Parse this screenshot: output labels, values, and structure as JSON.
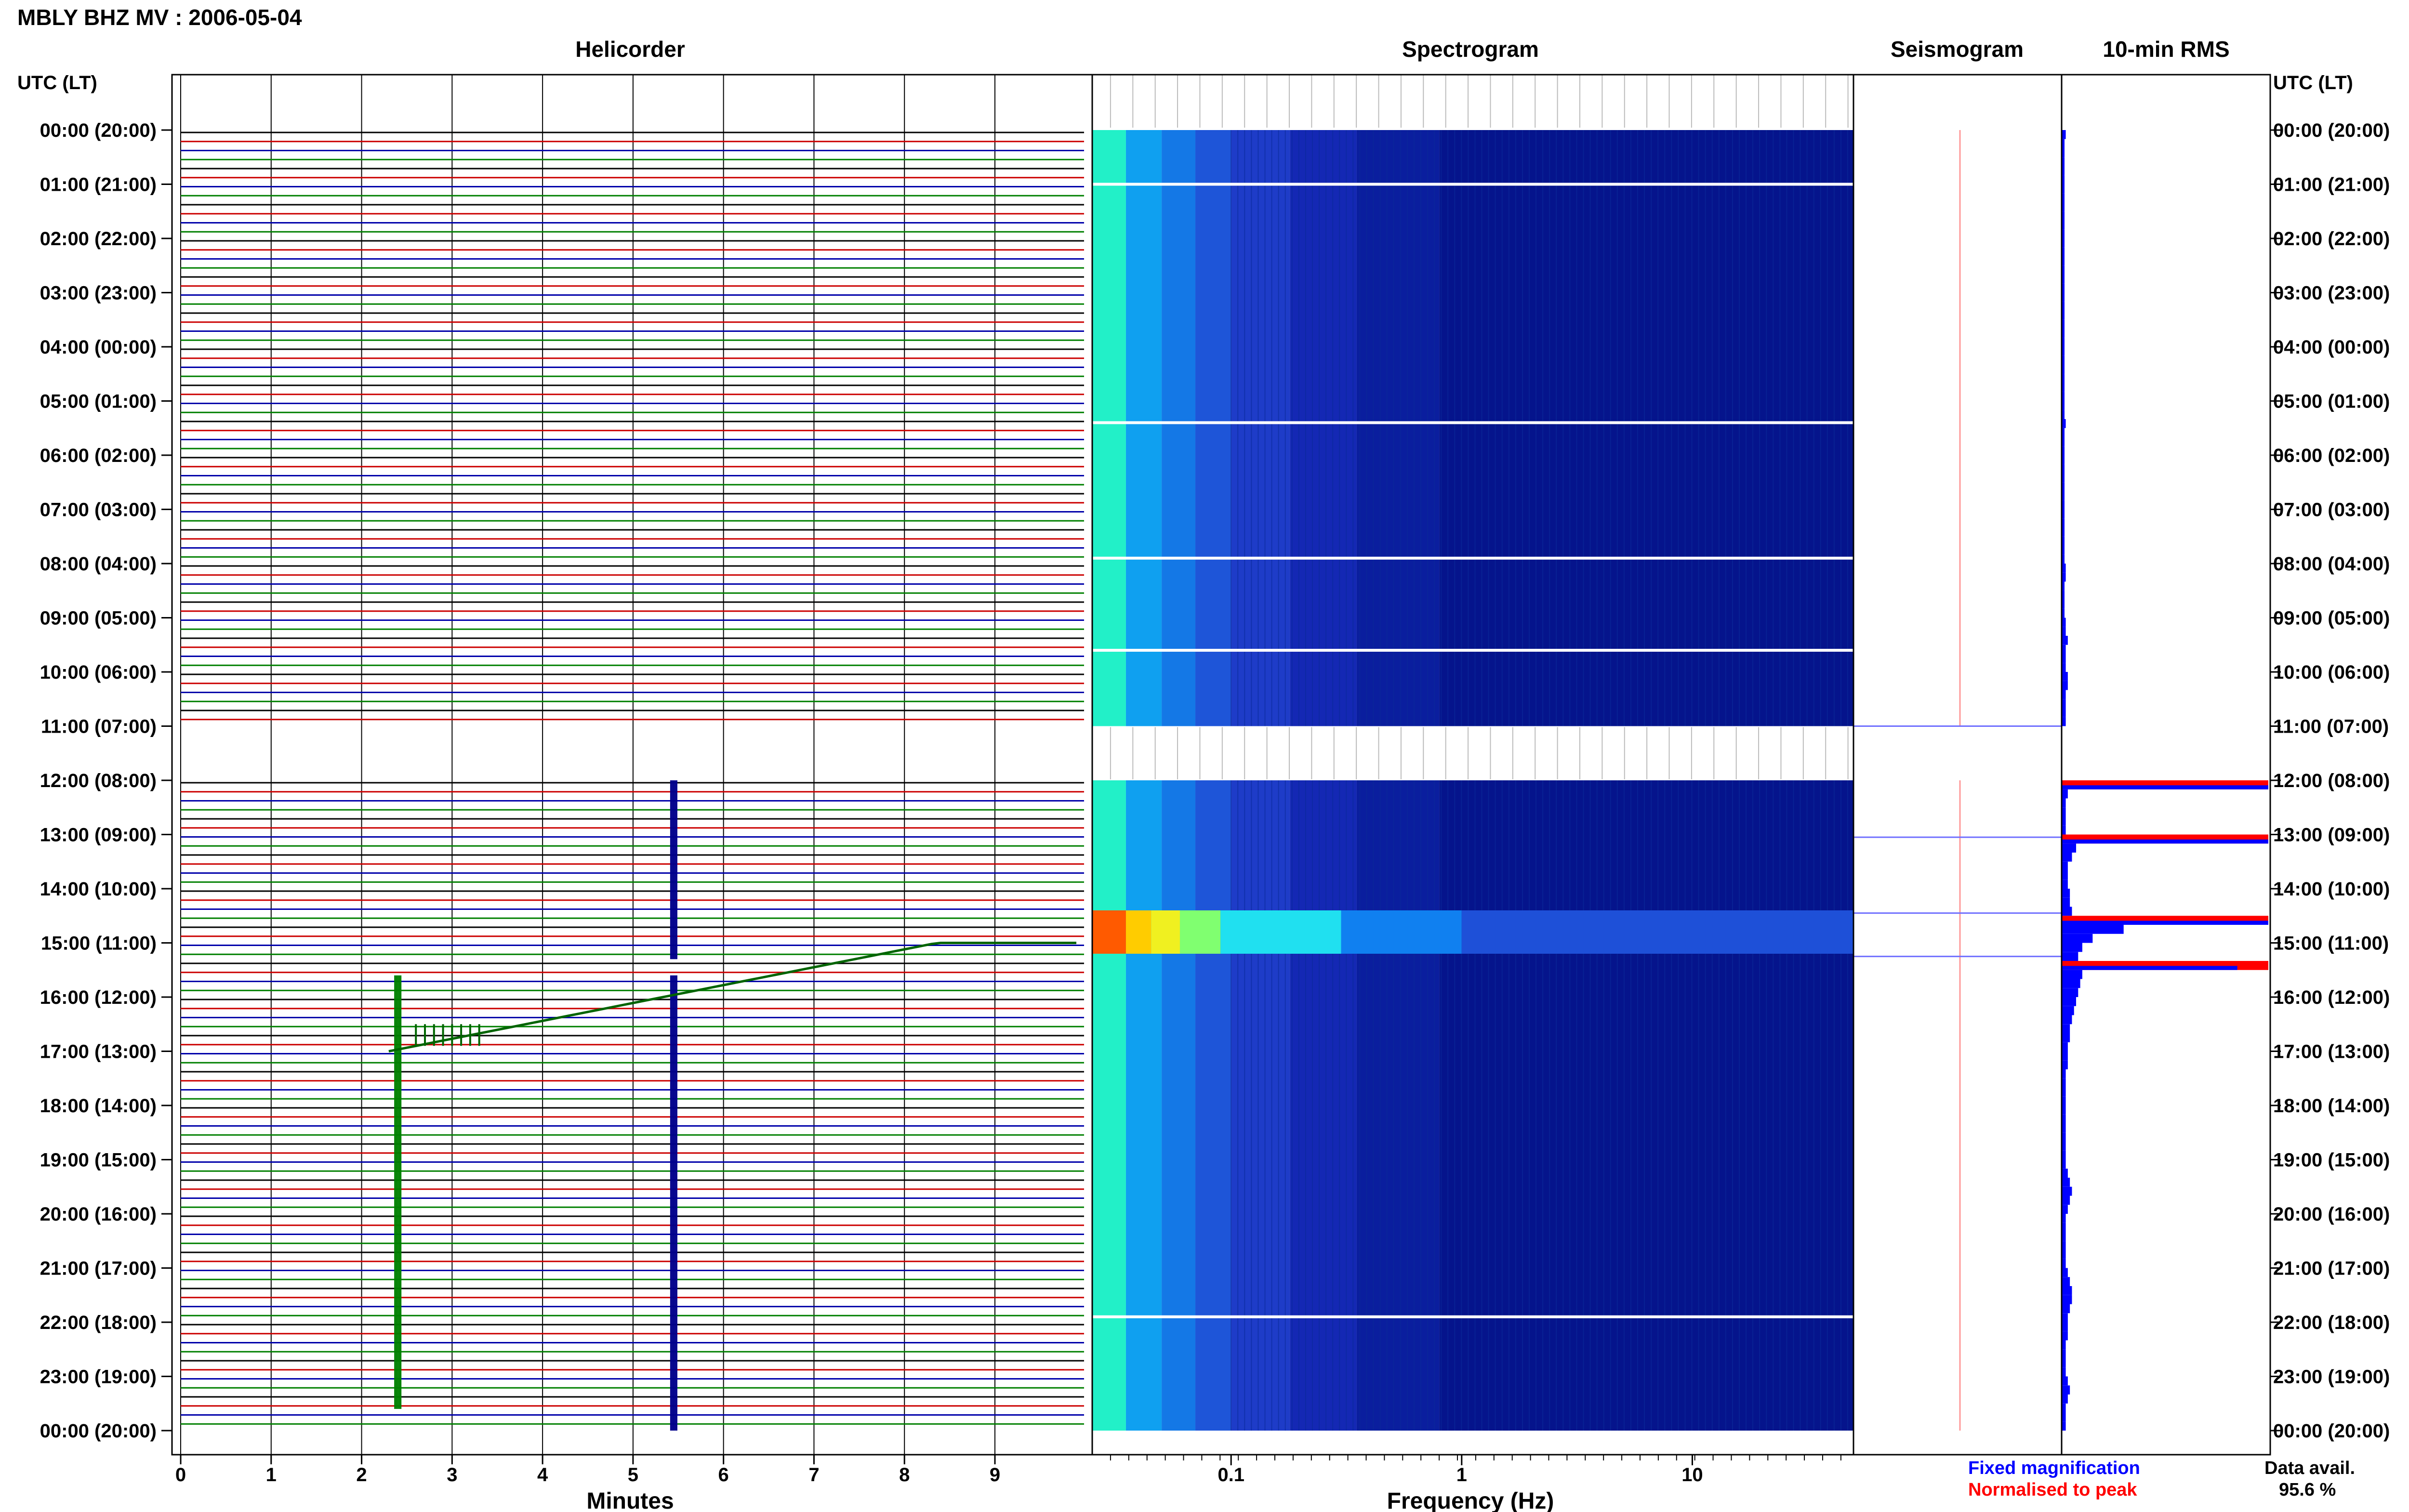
{
  "header": {
    "title": "MBLY BHZ MV : 2006-05-04"
  },
  "panels": {
    "helicorder": "Helicorder",
    "spectrogram": "Spectrogram",
    "seismogram": "Seismogram",
    "rms": "10-min RMS"
  },
  "time_axis": {
    "left_header": "UTC (LT)",
    "right_header": "UTC (LT)",
    "labels": [
      "00:00 (20:00)",
      "01:00 (21:00)",
      "02:00 (22:00)",
      "03:00 (23:00)",
      "04:00 (00:00)",
      "05:00 (01:00)",
      "06:00 (02:00)",
      "07:00 (03:00)",
      "08:00 (04:00)",
      "09:00 (05:00)",
      "10:00 (06:00)",
      "11:00 (07:00)",
      "12:00 (08:00)",
      "13:00 (09:00)",
      "14:00 (10:00)",
      "15:00 (11:00)",
      "16:00 (12:00)",
      "17:00 (13:00)",
      "18:00 (14:00)",
      "19:00 (15:00)",
      "20:00 (16:00)",
      "21:00 (17:00)",
      "22:00 (18:00)",
      "23:00 (19:00)",
      "00:00 (20:00)"
    ]
  },
  "helicorder_axis": {
    "xlabel": "Minutes",
    "ticks": [
      "0",
      "1",
      "2",
      "3",
      "4",
      "5",
      "6",
      "7",
      "8",
      "9"
    ]
  },
  "spectrogram_axis": {
    "xlabel": "Frequency (Hz)",
    "ticks": [
      "0.1",
      "1",
      "10"
    ]
  },
  "legend": {
    "fixed": "Fixed magnification",
    "normalised": "Normalised to peak",
    "fixed_color": "#0000ff",
    "normalised_color": "#ff0000"
  },
  "data_availability": {
    "label": "Data avail.",
    "value": "95.6 %"
  },
  "colors": {
    "trace_colors": [
      "#000000",
      "#cc0000",
      "#0000aa",
      "#008000"
    ],
    "spectrogram_background": "#00008b",
    "rms_bar": "#0000ff",
    "rms_peak": "#ff0000"
  },
  "chart_data": {
    "type": "heatmap",
    "title": "MBLY BHZ MV : 2006-05-04",
    "helicorder": {
      "x_unit": "minutes",
      "xlim": [
        0,
        10
      ],
      "y_unit": "hours UTC",
      "ylim": [
        0,
        24
      ],
      "traces_per_hour": 6,
      "data_gaps_hours": [
        [
          11.0,
          12.0
        ]
      ],
      "features": [
        {
          "start_hour": 12.0,
          "end_hour": 15.3,
          "minute": 5.45,
          "description": "large spike"
        },
        {
          "start_hour": 15.6,
          "end_hour": 23.6,
          "minute": 2.4,
          "description": "downward spike"
        },
        {
          "start_hour": 15.6,
          "end_hour": 24.0,
          "minute": 5.45,
          "description": "large spike"
        }
      ]
    },
    "spectrogram": {
      "x_unit": "Hz",
      "x_scale": "log",
      "xlim": [
        0.025,
        50
      ],
      "gaps_hours": [
        [
          11.0,
          12.0
        ]
      ],
      "high_energy_hours": [
        [
          14.4,
          15.2
        ]
      ],
      "white_lines_hours": [
        1.0,
        5.4,
        7.9,
        9.6,
        21.9
      ]
    },
    "rms": {
      "interval_minutes": 10,
      "values": [
        0.02,
        0.01,
        0.01,
        0.01,
        0.01,
        0.01,
        0.01,
        0.01,
        0.01,
        0.01,
        0.01,
        0.01,
        0.01,
        0.01,
        0.01,
        0.01,
        0.01,
        0.01,
        0.01,
        0.01,
        0.01,
        0.01,
        0.01,
        0.01,
        0.01,
        0.01,
        0.01,
        0.01,
        0.01,
        0.01,
        0.01,
        0.01,
        0.02,
        0.01,
        0.01,
        0.01,
        0.01,
        0.01,
        0.01,
        0.01,
        0.01,
        0.01,
        0.01,
        0.01,
        0.01,
        0.01,
        0.01,
        0.01,
        0.02,
        0.02,
        0.01,
        0.01,
        0.01,
        0.01,
        0.02,
        0.02,
        0.03,
        0.02,
        0.02,
        0.02,
        0.03,
        0.03,
        0.02,
        0.02,
        0.02,
        0.02,
        0,
        0,
        0,
        0,
        0,
        0,
        1.0,
        0.03,
        0.02,
        0.02,
        0.02,
        0.02,
        1.0,
        0.07,
        0.05,
        0.03,
        0.03,
        0.03,
        0.04,
        0.04,
        0.05,
        1.0,
        0.3,
        0.15,
        0.1,
        0.08,
        1.0,
        0.1,
        0.09,
        0.08,
        0.07,
        0.06,
        0.05,
        0.04,
        0.04,
        0.03,
        0.03,
        0.03,
        0.02,
        0.02,
        0.02,
        0.02,
        0.02,
        0.02,
        0.02,
        0.02,
        0.02,
        0.02,
        0.02,
        0.03,
        0.04,
        0.05,
        0.04,
        0.03,
        0.02,
        0.02,
        0.02,
        0.02,
        0.02,
        0.02,
        0.03,
        0.04,
        0.05,
        0.05,
        0.04,
        0.03,
        0.03,
        0.03,
        0.02,
        0.02,
        0.02,
        0.02,
        0.03,
        0.04,
        0.03,
        0.02,
        0.02,
        0.02
      ],
      "peak_indices": [
        72,
        78,
        87,
        92
      ]
    }
  }
}
